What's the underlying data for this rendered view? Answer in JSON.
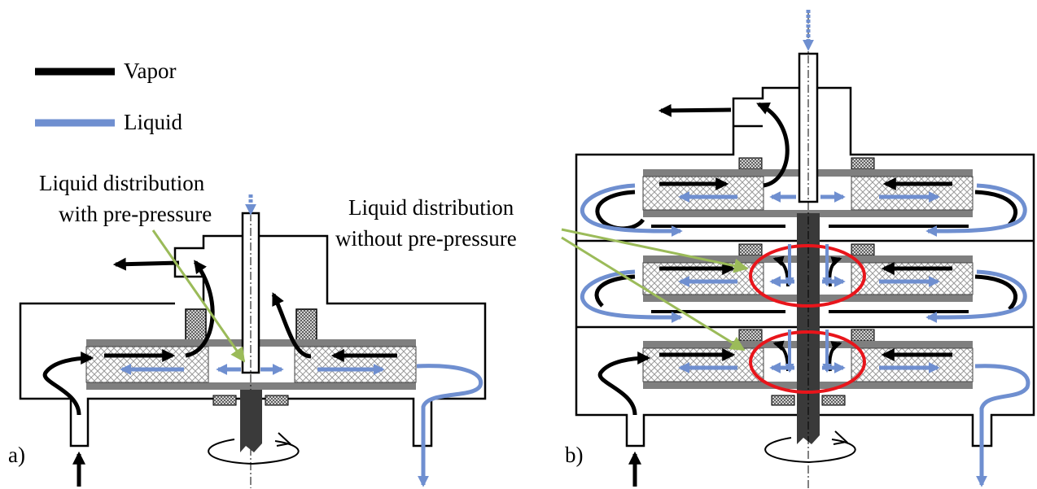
{
  "legend": {
    "vapor_label": "Vapor",
    "liquid_label": "Liquid",
    "vapor_color": "#000000",
    "liquid_color": "#6f8fd0"
  },
  "callouts": {
    "with_pre_pressure_line1": "Liquid distribution",
    "with_pre_pressure_line2": "with pre-pressure",
    "without_pre_pressure_line1": "Liquid distribution",
    "without_pre_pressure_line2": "without pre-pressure"
  },
  "panels": {
    "a_label": "a)",
    "b_label": "b)"
  },
  "colors": {
    "arrow_blue": "#6f8fd0",
    "pointer_green": "#9bbb59",
    "highlight_red": "#e8151b",
    "plate_gray": "#7f7f7f",
    "shaft_dark": "#3a3a3a"
  }
}
